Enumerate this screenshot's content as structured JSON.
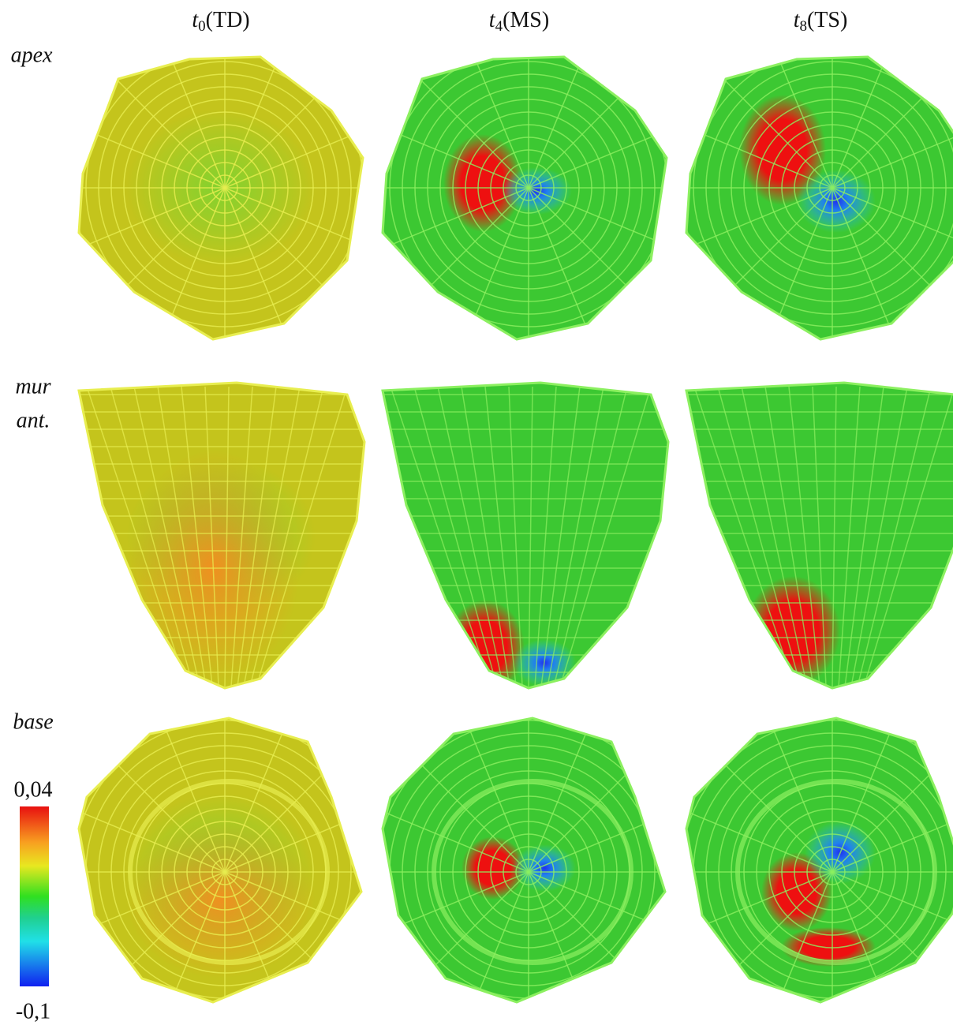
{
  "columns": [
    {
      "var": "t",
      "sub": "0",
      "rest": "(TD)"
    },
    {
      "var": "t",
      "sub": "4",
      "rest": "(MS)"
    },
    {
      "var": "t",
      "sub": "8",
      "rest": "(TS)"
    }
  ],
  "rows": [
    {
      "label": "apex"
    },
    {
      "label": "mur",
      "label2": "ant."
    },
    {
      "label": "base"
    }
  ],
  "colorbar": {
    "max_label": "0,04",
    "min_label": "-0,1"
  }
}
